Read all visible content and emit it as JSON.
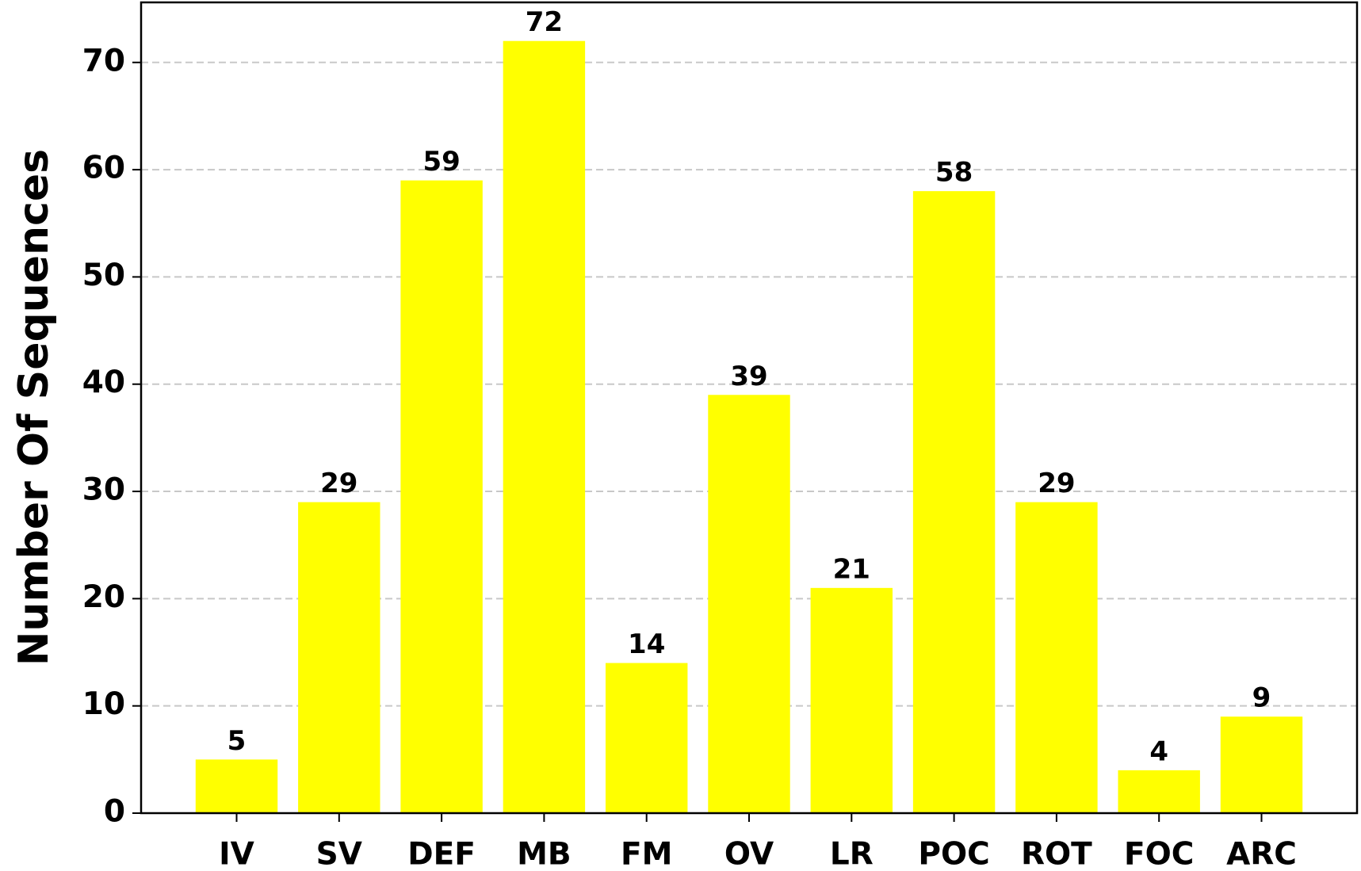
{
  "chart_data": {
    "type": "bar",
    "y_label": "Number Of Sequences",
    "categories": [
      "IV",
      "SV",
      "DEF",
      "MB",
      "FM",
      "OV",
      "LR",
      "POC",
      "ROT",
      "FOC",
      "ARC"
    ],
    "values": [
      5,
      29,
      59,
      72,
      14,
      39,
      21,
      58,
      29,
      4,
      9
    ],
    "color": "#ffff00",
    "ylim": [
      0,
      75.6
    ],
    "yticks": [
      0,
      10,
      20,
      30,
      40,
      50,
      60,
      70
    ],
    "grid": true
  }
}
